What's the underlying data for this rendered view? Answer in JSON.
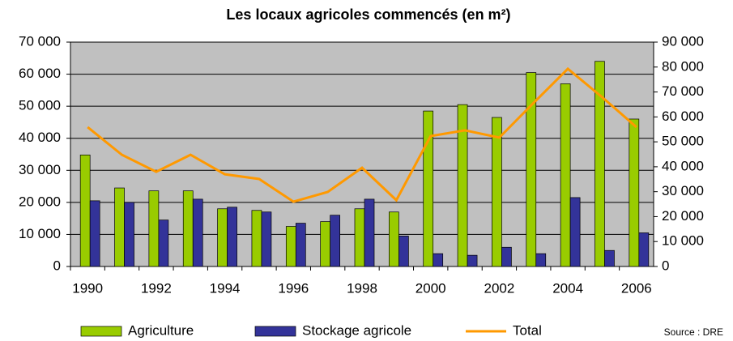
{
  "chart_data": {
    "type": "bar",
    "title": "Les locaux agricoles commencés (en m²)",
    "source": "Source : DRE",
    "categories": [
      "1990",
      null,
      "1992",
      null,
      "1994",
      null,
      "1996",
      null,
      "1998",
      null,
      "2000",
      null,
      "2002",
      null,
      "2004",
      null,
      "2006"
    ],
    "series": [
      {
        "name": "Agriculture",
        "color": "#99cc00",
        "values": [
          34800,
          24500,
          23600,
          23600,
          18000,
          17500,
          12500,
          14000,
          18000,
          17000,
          48500,
          50500,
          46500,
          60500,
          57000,
          64000,
          46000
        ]
      },
      {
        "name": "Stockage agricole",
        "color": "#333399",
        "values": [
          20500,
          20000,
          14500,
          21000,
          18500,
          17000,
          13500,
          16000,
          21000,
          9500,
          4000,
          3500,
          6000,
          4000,
          21500,
          5000,
          10500
        ]
      },
      {
        "name": "Total",
        "color": "#ff9900",
        "type": "line",
        "axis": "y2",
        "values": [
          55900,
          44800,
          38000,
          44800,
          37000,
          35100,
          26000,
          29900,
          39600,
          26600,
          52300,
          54600,
          51700,
          65600,
          79300,
          67900,
          55900
        ]
      }
    ],
    "ylim": [
      0,
      70000
    ],
    "yticks": [
      0,
      {
        "value": 10000,
        "label": "10 000"
      },
      {
        "value": 20000,
        "label": "20 000"
      },
      {
        "value": 30000,
        "label": "30 000"
      },
      {
        "value": 40000,
        "label": "40 000"
      },
      {
        "value": 50000,
        "label": "50 000"
      },
      {
        "value": 60000,
        "label": "60 000"
      },
      {
        "value": 70000,
        "label": "70 000"
      }
    ],
    "y2lim": [
      0,
      90000
    ],
    "y2ticks": [
      0,
      {
        "value": 10000,
        "label": "10 000"
      },
      {
        "value": 20000,
        "label": "20 000"
      },
      {
        "value": 30000,
        "label": "30 000"
      },
      {
        "value": 40000,
        "label": "40 000"
      },
      {
        "value": 50000,
        "label": "50 000"
      },
      {
        "value": 60000,
        "label": "60 000"
      },
      {
        "value": 70000,
        "label": "70 000"
      },
      {
        "value": 80000,
        "label": "80 000"
      },
      {
        "value": 90000,
        "label": "90 000"
      }
    ],
    "grid": true,
    "legend": "bottom"
  }
}
